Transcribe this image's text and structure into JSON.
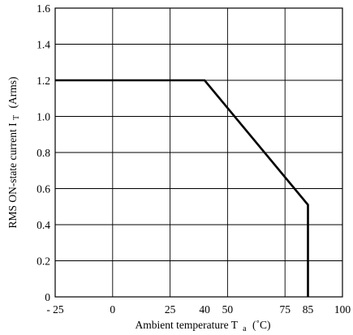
{
  "chart_data": {
    "type": "line",
    "xlabel": {
      "main": "Ambient temperature T",
      "subscript": "a",
      "unit": "(˚C)"
    },
    "ylabel": {
      "main": "RMS ON-state current I",
      "subscript": "T",
      "unit": "(Arms)"
    },
    "xlim": [
      -25,
      100
    ],
    "ylim": [
      0,
      1.6
    ],
    "x_grid": [
      -25,
      0,
      25,
      50,
      75,
      100
    ],
    "y_grid": [
      0,
      0.2,
      0.4,
      0.6,
      0.8,
      1.0,
      1.2,
      1.4,
      1.6
    ],
    "x_tick_labels": [
      {
        "x": -25,
        "label": "- 25"
      },
      {
        "x": 0,
        "label": "0"
      },
      {
        "x": 25,
        "label": "25"
      },
      {
        "x": 40,
        "label": "40"
      },
      {
        "x": 50,
        "label": "50"
      },
      {
        "x": 75,
        "label": "75"
      },
      {
        "x": 85,
        "label": "85"
      },
      {
        "x": 100,
        "label": "100"
      }
    ],
    "y_tick_labels": [
      "0",
      "0.2",
      "0.4",
      "0.6",
      "0.8",
      "1.0",
      "1.2",
      "1.4",
      "1.6"
    ],
    "grid": true,
    "series": [
      {
        "x": [
          -25,
          40,
          85,
          85
        ],
        "y": [
          1.2,
          1.2,
          0.51,
          0
        ]
      }
    ]
  }
}
